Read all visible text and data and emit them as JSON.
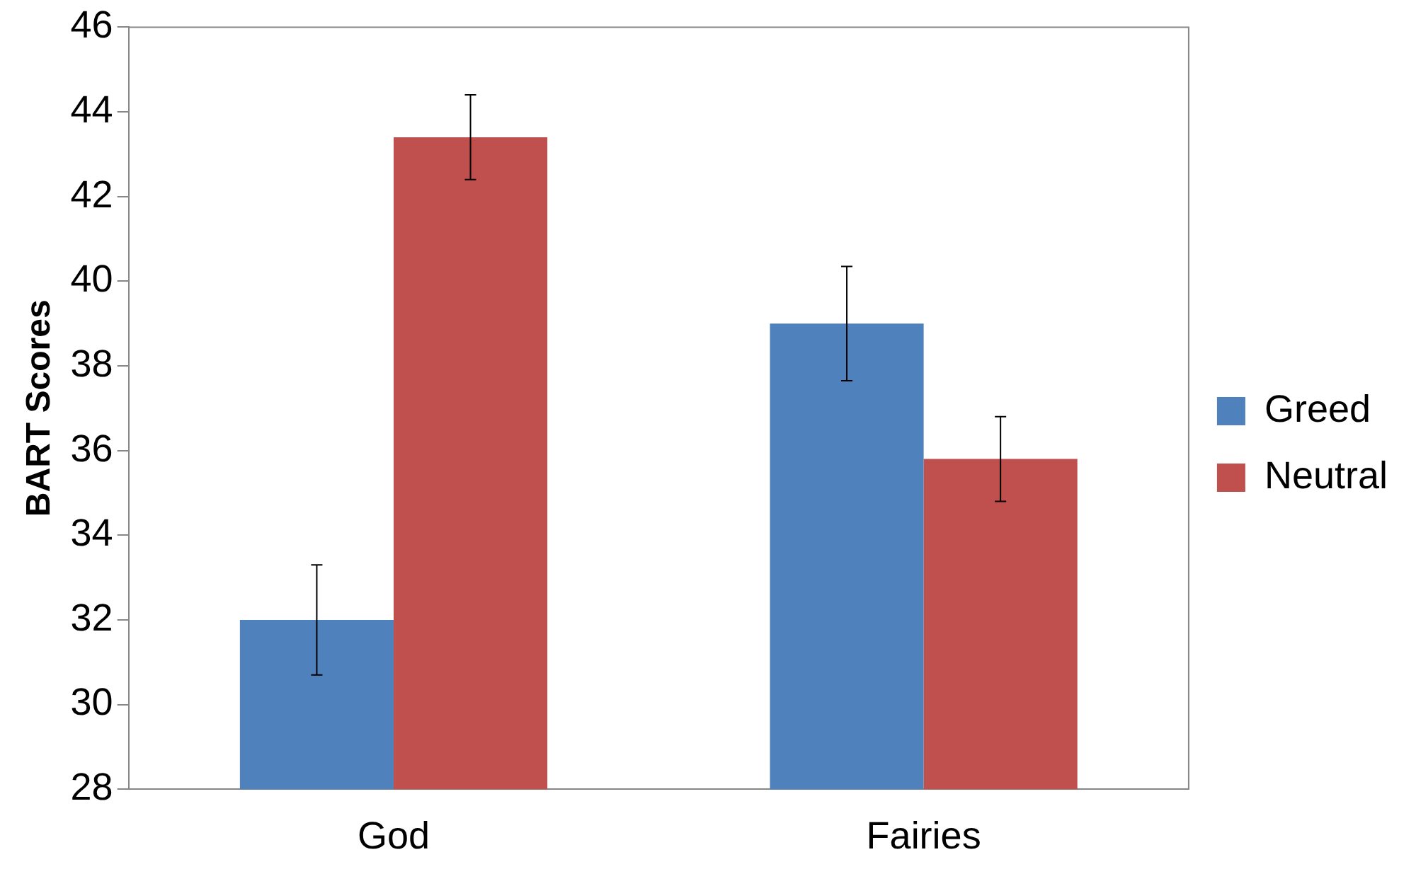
{
  "chart_data": {
    "type": "bar",
    "ylabel": "BART Scores",
    "categories": [
      "God",
      "Fairies"
    ],
    "series": [
      {
        "name": "Greed",
        "color": "#4f81bd",
        "values": [
          32.0,
          39.0
        ],
        "errors": [
          1.3,
          1.35
        ]
      },
      {
        "name": "Neutral",
        "color": "#c0504d",
        "values": [
          43.4,
          35.8
        ],
        "errors": [
          1.0,
          1.0
        ]
      }
    ],
    "ylim": [
      28,
      46
    ],
    "yticks": [
      28,
      30,
      32,
      34,
      36,
      38,
      40,
      42,
      44,
      46
    ],
    "grid": false,
    "legend": "right"
  }
}
